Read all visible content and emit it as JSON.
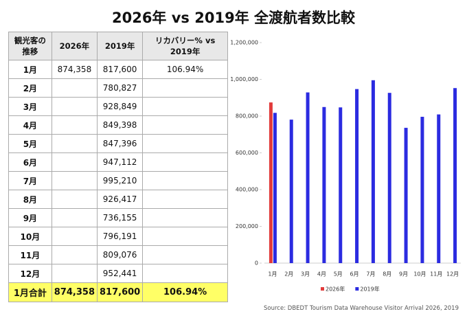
{
  "title": "2026年 vs 2019年 全渡航者数比較",
  "table": {
    "headers": [
      "観光客の推移",
      "2026年",
      "2019年",
      "リカバリー% vs 2019年"
    ],
    "rows": [
      [
        "1月",
        "874,358",
        "817,600",
        "106.94%"
      ],
      [
        "2月",
        null,
        "780,827",
        null
      ],
      [
        "3月",
        null,
        "928,849",
        null
      ],
      [
        "4月",
        null,
        "849,398",
        null
      ],
      [
        "5月",
        null,
        "847,396",
        null
      ],
      [
        "6月",
        null,
        "947,112",
        null
      ],
      [
        "7月",
        null,
        "995,210",
        null
      ],
      [
        "8月",
        null,
        "926,417",
        null
      ],
      [
        "9月",
        null,
        "736,155",
        null
      ],
      [
        "10月",
        null,
        "796,191",
        null
      ],
      [
        "11月",
        null,
        "809,076",
        null
      ],
      [
        "12月",
        null,
        "952,441",
        null
      ]
    ],
    "total": [
      "1月合計",
      "874,358",
      "817,600",
      "106.94%"
    ]
  },
  "chart_data": {
    "type": "bar",
    "categories": [
      "1月",
      "2月",
      "3月",
      "4月",
      "5月",
      "6月",
      "7月",
      "8月",
      "9月",
      "10月",
      "11月",
      "12月"
    ],
    "series": [
      {
        "name": "2026年",
        "color": "#e23b3b",
        "values": [
          874358,
          null,
          null,
          null,
          null,
          null,
          null,
          null,
          null,
          null,
          null,
          null
        ]
      },
      {
        "name": "2019年",
        "color": "#2b2be0",
        "values": [
          817600,
          780827,
          928849,
          849398,
          847396,
          947112,
          995210,
          926417,
          736155,
          796191,
          809076,
          952441
        ]
      }
    ],
    "ylim": [
      0,
      1200000
    ],
    "yticks": [
      0,
      {
        "value": 200000,
        "label": "200,000"
      },
      {
        "value": 400000,
        "label": "400,000"
      },
      {
        "value": 600000,
        "label": "600,000"
      },
      {
        "value": 800000,
        "label": "800,000"
      },
      {
        "value": 1000000,
        "label": "1,000,000"
      },
      {
        "value": 1200000,
        "label": "1,200,000"
      }
    ],
    "grid": false,
    "legend": "bottom"
  },
  "source": "Source: DBEDT Tourism Data Warehouse Visitor Arrival 2026, 2019"
}
